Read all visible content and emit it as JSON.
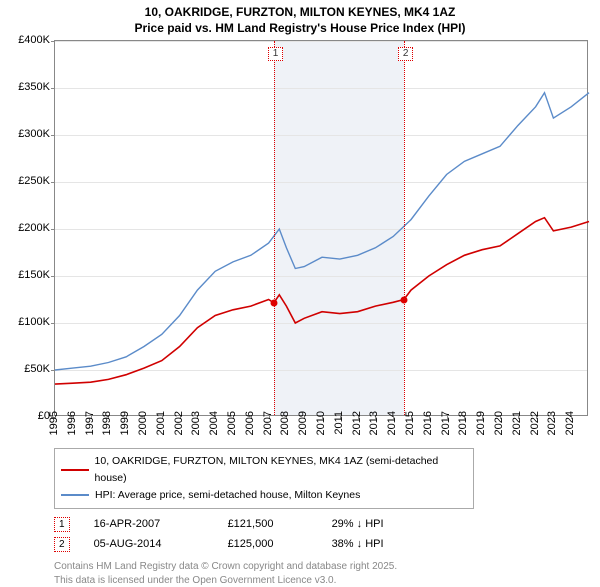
{
  "title_line1": "10, OAKRIDGE, FURZTON, MILTON KEYNES, MK4 1AZ",
  "title_line2": "Price paid vs. HM Land Registry's House Price Index (HPI)",
  "title_fontsize": 12,
  "axis_fontsize": 11,
  "chart": {
    "type": "line",
    "background_color": "#ffffff",
    "grid_color": "#e5e5e5",
    "border_color": "#888888",
    "shade_color": "#e2e8f0",
    "x_domain": [
      1995,
      2025
    ],
    "y_domain": [
      0,
      400000
    ],
    "y_step": 50000,
    "y_labels": [
      "£0",
      "£50K",
      "£100K",
      "£150K",
      "£200K",
      "£250K",
      "£300K",
      "£350K",
      "£400K"
    ],
    "x_labels": [
      "1995",
      "1996",
      "1997",
      "1998",
      "1999",
      "2000",
      "2001",
      "2002",
      "2003",
      "2004",
      "2005",
      "2006",
      "2007",
      "2008",
      "2009",
      "2010",
      "2011",
      "2012",
      "2013",
      "2014",
      "2015",
      "2016",
      "2017",
      "2018",
      "2019",
      "2020",
      "2021",
      "2022",
      "2023",
      "2024"
    ],
    "shade": {
      "from": 2007.29,
      "to": 2014.6
    },
    "series": [
      {
        "name": "10, OAKRIDGE, FURZTON, MILTON KEYNES, MK4 1AZ (semi-detached house)",
        "color": "#d00000",
        "width": 1.6,
        "points": [
          [
            1995,
            35000
          ],
          [
            1996,
            36000
          ],
          [
            1997,
            37000
          ],
          [
            1998,
            40000
          ],
          [
            1999,
            45000
          ],
          [
            2000,
            52000
          ],
          [
            2001,
            60000
          ],
          [
            2002,
            75000
          ],
          [
            2003,
            95000
          ],
          [
            2004,
            108000
          ],
          [
            2005,
            114000
          ],
          [
            2006,
            118000
          ],
          [
            2007,
            125000
          ],
          [
            2007.29,
            121500
          ],
          [
            2007.6,
            130000
          ],
          [
            2008,
            118000
          ],
          [
            2008.5,
            100000
          ],
          [
            2009,
            105000
          ],
          [
            2010,
            112000
          ],
          [
            2011,
            110000
          ],
          [
            2012,
            112000
          ],
          [
            2013,
            118000
          ],
          [
            2014,
            122000
          ],
          [
            2014.6,
            125000
          ],
          [
            2015,
            135000
          ],
          [
            2016,
            150000
          ],
          [
            2017,
            162000
          ],
          [
            2018,
            172000
          ],
          [
            2019,
            178000
          ],
          [
            2020,
            182000
          ],
          [
            2021,
            195000
          ],
          [
            2022,
            208000
          ],
          [
            2022.5,
            212000
          ],
          [
            2023,
            198000
          ],
          [
            2024,
            202000
          ],
          [
            2025,
            208000
          ]
        ]
      },
      {
        "name": "HPI: Average price, semi-detached house, Milton Keynes",
        "color": "#5b8bc9",
        "width": 1.4,
        "points": [
          [
            1995,
            50000
          ],
          [
            1996,
            52000
          ],
          [
            1997,
            54000
          ],
          [
            1998,
            58000
          ],
          [
            1999,
            64000
          ],
          [
            2000,
            75000
          ],
          [
            2001,
            88000
          ],
          [
            2002,
            108000
          ],
          [
            2003,
            135000
          ],
          [
            2004,
            155000
          ],
          [
            2005,
            165000
          ],
          [
            2006,
            172000
          ],
          [
            2007,
            185000
          ],
          [
            2007.6,
            200000
          ],
          [
            2008,
            180000
          ],
          [
            2008.5,
            158000
          ],
          [
            2009,
            160000
          ],
          [
            2010,
            170000
          ],
          [
            2011,
            168000
          ],
          [
            2012,
            172000
          ],
          [
            2013,
            180000
          ],
          [
            2014,
            192000
          ],
          [
            2015,
            210000
          ],
          [
            2016,
            235000
          ],
          [
            2017,
            258000
          ],
          [
            2018,
            272000
          ],
          [
            2019,
            280000
          ],
          [
            2020,
            288000
          ],
          [
            2021,
            310000
          ],
          [
            2022,
            330000
          ],
          [
            2022.5,
            345000
          ],
          [
            2023,
            318000
          ],
          [
            2024,
            330000
          ],
          [
            2025,
            345000
          ]
        ]
      }
    ],
    "markers": [
      {
        "num": "1",
        "x": 2007.29,
        "y": 121500
      },
      {
        "num": "2",
        "x": 2014.6,
        "y": 125000
      }
    ]
  },
  "legend": {
    "border_color": "#aaaaaa",
    "items": [
      {
        "color": "#d00000",
        "label": "10, OAKRIDGE, FURZTON, MILTON KEYNES, MK4 1AZ (semi-detached house)"
      },
      {
        "color": "#5b8bc9",
        "label": "HPI: Average price, semi-detached house, Milton Keynes"
      }
    ]
  },
  "sales": [
    {
      "num": "1",
      "date": "16-APR-2007",
      "price": "£121,500",
      "delta": "29% ↓ HPI"
    },
    {
      "num": "2",
      "date": "05-AUG-2014",
      "price": "£125,000",
      "delta": "38% ↓ HPI"
    }
  ],
  "footer_line1": "Contains HM Land Registry data © Crown copyright and database right 2025.",
  "footer_line2": "This data is licensed under the Open Government Licence v3.0."
}
